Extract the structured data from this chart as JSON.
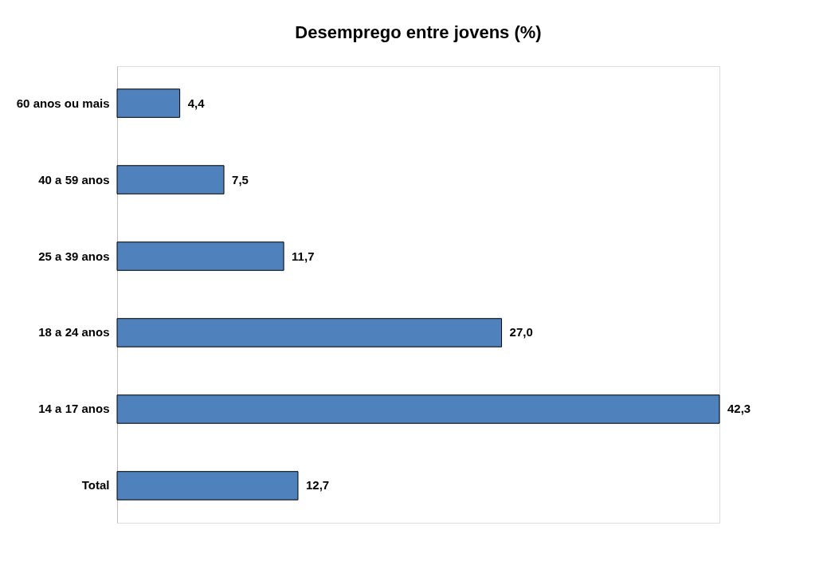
{
  "chart_data": {
    "type": "bar",
    "orientation": "horizontal",
    "title": "Desemprego entre jovens (%)",
    "categories": [
      "60 anos ou mais",
      "40 a 59 anos",
      "25 a 39 anos",
      "18 a 24 anos",
      "14 a 17 anos",
      "Total"
    ],
    "values": [
      4.4,
      7.5,
      11.7,
      27.0,
      42.3,
      12.7
    ],
    "value_labels": [
      "4,4",
      "7,5",
      "11,7",
      "27,0",
      "42,3",
      "12,7"
    ],
    "color": "#4f81bd"
  }
}
